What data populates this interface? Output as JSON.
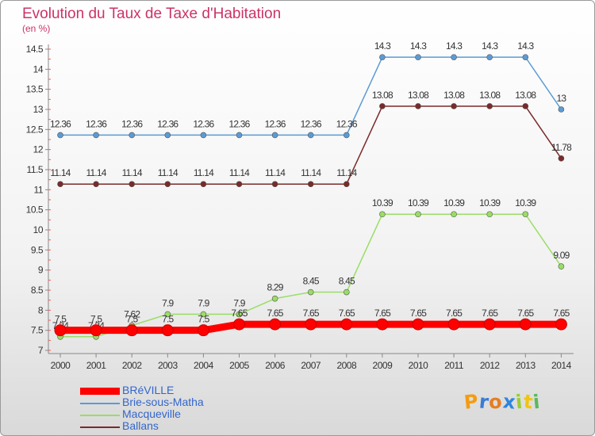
{
  "chart_data": {
    "type": "line",
    "title": "Evolution du Taux de Taxe d'Habitation",
    "unit_label": "(en %)",
    "x": [
      "2000",
      "2001",
      "2002",
      "2003",
      "2004",
      "2005",
      "2006",
      "2007",
      "2008",
      "2009",
      "2010",
      "2011",
      "2012",
      "2013",
      "2014"
    ],
    "ylim": [
      7,
      14.5
    ],
    "yticks": [
      "7",
      "7.5",
      "8",
      "8.5",
      "9",
      "9.5",
      "10",
      "10.5",
      "11",
      "11.5",
      "12",
      "12.5",
      "13",
      "13.5",
      "14",
      "14.5"
    ],
    "grid": false,
    "legend_position": "bottom-left",
    "series": [
      {
        "name": "BRéVILLE",
        "color": "#ff0000",
        "values": [
          7.5,
          7.5,
          7.5,
          7.5,
          7.5,
          7.65,
          7.65,
          7.65,
          7.65,
          7.65,
          7.65,
          7.65,
          7.65,
          7.65,
          7.65
        ],
        "labels": [
          "7.5",
          "7.5",
          "7.5",
          "7.5",
          "7.5",
          "7.65",
          "7.65",
          "7.65",
          "7.65",
          "7.65",
          "7.65",
          "7.65",
          "7.65",
          "7.65",
          "7.65"
        ]
      },
      {
        "name": "Brie-sous-Matha",
        "color": "#5b9bd5",
        "values": [
          12.36,
          12.36,
          12.36,
          12.36,
          12.36,
          12.36,
          12.36,
          12.36,
          12.36,
          14.3,
          14.3,
          14.3,
          14.3,
          14.3,
          13
        ],
        "labels": [
          "12.36",
          "12.36",
          "12.36",
          "12.36",
          "12.36",
          "12.36",
          "12.36",
          "12.36",
          "12.36",
          "14.3",
          "14.3",
          "14.3",
          "14.3",
          "14.3",
          "13"
        ]
      },
      {
        "name": "Macqueville",
        "color": "#99dd66",
        "values": [
          7.34,
          7.34,
          7.62,
          7.9,
          7.9,
          7.9,
          8.29,
          8.45,
          8.45,
          10.39,
          10.39,
          10.39,
          10.39,
          10.39,
          9.09
        ],
        "labels": [
          "7.34",
          "7.34",
          "7.62",
          "7.9",
          "7.9",
          "7.9",
          "8.29",
          "8.45",
          "8.45",
          "10.39",
          "10.39",
          "10.39",
          "10.39",
          "10.39",
          "9.09"
        ]
      },
      {
        "name": "Ballans",
        "color": "#7a2a2a",
        "values": [
          11.14,
          11.14,
          11.14,
          11.14,
          11.14,
          11.14,
          11.14,
          11.14,
          11.14,
          13.08,
          13.08,
          13.08,
          13.08,
          13.08,
          11.78
        ],
        "labels": [
          "11.14",
          "11.14",
          "11.14",
          "11.14",
          "11.14",
          "11.14",
          "11.14",
          "11.14",
          "11.14",
          "13.08",
          "13.08",
          "13.08",
          "13.08",
          "13.08",
          "11.78"
        ]
      }
    ]
  },
  "logo": {
    "letters": [
      "P",
      "r",
      "o",
      "x",
      "i",
      "t",
      "i"
    ],
    "colors": [
      "#f39c12",
      "#3a7bd5",
      "#e67e22",
      "#2e86de",
      "#9acd32",
      "#f1c40f",
      "#5cb85c"
    ]
  }
}
